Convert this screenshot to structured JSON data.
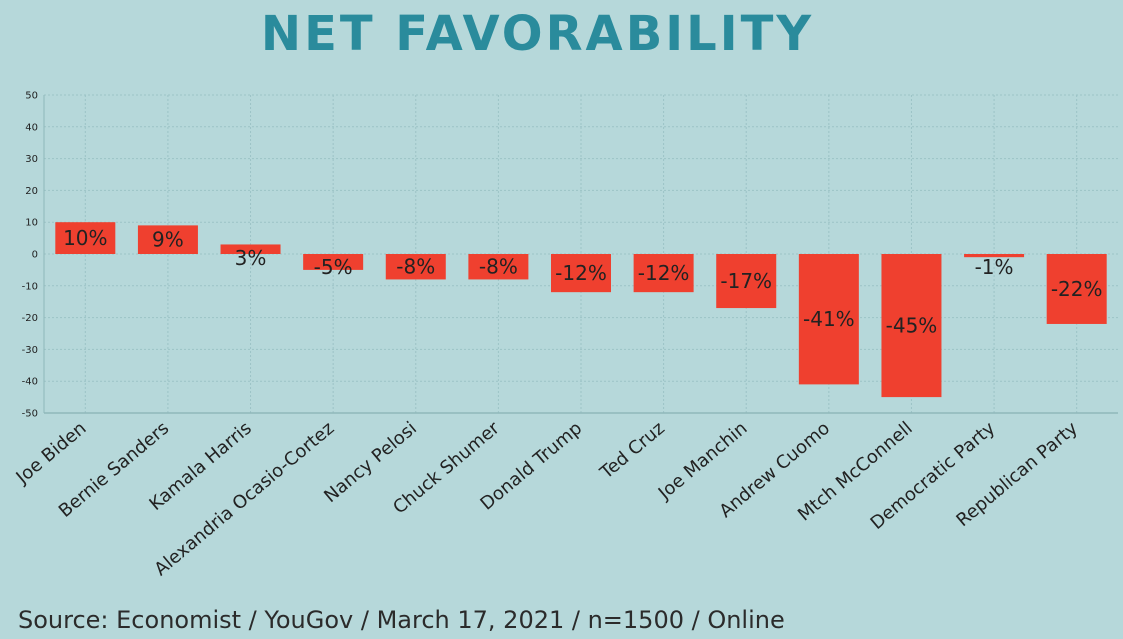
{
  "title": "NET FAVORABILITY",
  "source": "Source: Economist / YouGov / March 17, 2021 / n=1500 / Online",
  "colors": {
    "background": "#b6d8da",
    "title": "#2a8b9c",
    "bar": "#ef402f",
    "grid": "#9cc3c6",
    "axis": "#8fb7ba"
  },
  "chart_data": {
    "type": "bar",
    "title": "NET FAVORABILITY",
    "xlabel": "",
    "ylabel": "",
    "ylim": [
      -50,
      50
    ],
    "yticks": [
      50,
      40,
      30,
      20,
      10,
      0,
      -10,
      -20,
      -30,
      -40,
      -50
    ],
    "grid": true,
    "categories": [
      "Joe Biden",
      "Bernie Sanders",
      "Kamala Harris",
      "Alexandria Ocasio-Cortez",
      "Nancy Pelosi",
      "Chuck Shumer",
      "Donald Trump",
      "Ted Cruz",
      "Joe Manchin",
      "Andrew Cuomo",
      "Mtch McConnell",
      "Democratic Party",
      "Republican Party"
    ],
    "values": [
      10,
      9,
      3,
      -5,
      -8,
      -8,
      -12,
      -12,
      -17,
      -41,
      -45,
      -1,
      -22
    ],
    "data_labels": [
      "10%",
      "9%",
      "3%",
      "-5%",
      "-8%",
      "-8%",
      "-12%",
      "-12%",
      "-17%",
      "-41%",
      "-45%",
      "-1%",
      "-22%"
    ]
  }
}
